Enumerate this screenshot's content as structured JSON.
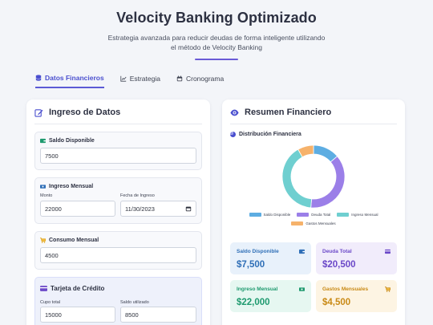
{
  "header": {
    "title": "Velocity Banking Optimizado",
    "subtitle_line1": "Estrategia avanzada para reducir deudas de forma inteligente utilizando",
    "subtitle_line2": "el método de Velocity Banking"
  },
  "tabs": [
    {
      "label": "Datos Financieros",
      "icon": "database-icon",
      "active": true
    },
    {
      "label": "Estrategia",
      "icon": "chart-line-icon",
      "active": false
    },
    {
      "label": "Cronograma",
      "icon": "calendar-icon",
      "active": false
    }
  ],
  "input_panel": {
    "title": "Ingreso de Datos",
    "saldo": {
      "label": "Saldo Disponible",
      "value": "7500"
    },
    "ingreso": {
      "label": "Ingreso Mensual",
      "monto_label": "Monto",
      "monto_value": "22000",
      "fecha_label": "Fecha de Ingreso",
      "fecha_value": "11/30/2023"
    },
    "consumo": {
      "label": "Consumo Mensual",
      "value": "4500"
    },
    "tarjeta": {
      "label": "Tarjeta de Crédito",
      "cupo_label": "Cupo total",
      "cupo_value": "15000",
      "saldo_label": "Saldo utilizado",
      "saldo_value": "8500"
    }
  },
  "summary_panel": {
    "title": "Resumen Financiero",
    "distribution_title": "Distribución Financiera",
    "legend": [
      "Saldo Disponible",
      "Deuda Total",
      "Ingreso Mensual",
      "Gastos Mensuales"
    ],
    "stats": {
      "saldo": {
        "label": "Saldo Disponible",
        "value": "$7,500"
      },
      "deuda": {
        "label": "Deuda Total",
        "value": "$20,500"
      },
      "ingreso": {
        "label": "Ingreso Mensual",
        "value": "$22,000"
      },
      "gastos": {
        "label": "Gastos Mensuales",
        "value": "$4,500"
      }
    }
  },
  "chart_data": {
    "type": "pie",
    "categories": [
      "Saldo Disponible",
      "Deuda Total",
      "Ingreso Mensual",
      "Gastos Mensuales"
    ],
    "values": [
      7500,
      20500,
      22000,
      4500
    ],
    "colors": [
      "#5dade2",
      "#9b7fe8",
      "#6fcfd0",
      "#f6b26b"
    ]
  },
  "colors": {
    "accent": "#5b5bd6",
    "saldo_bg": "#e8f1fb",
    "saldo_fg": "#2f6fb7",
    "deuda_bg": "#f1ecfb",
    "deuda_fg": "#6b48c8",
    "ingreso_bg": "#e6f7f1",
    "ingreso_fg": "#1e9a6f",
    "gastos_bg": "#fdf4e3",
    "gastos_fg": "#c98a16"
  }
}
